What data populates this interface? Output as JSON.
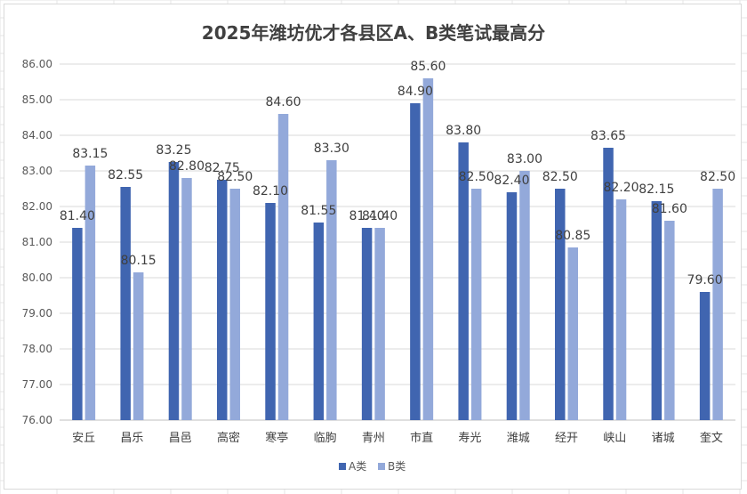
{
  "chart_data": {
    "type": "bar",
    "title": "2025年潍坊优才各县区A、B类笔试最高分",
    "categories": [
      "安丘",
      "昌乐",
      "昌邑",
      "高密",
      "寒亭",
      "临朐",
      "青州",
      "市直",
      "寿光",
      "潍城",
      "经开",
      "峡山",
      "诸城",
      "奎文"
    ],
    "series": [
      {
        "name": "A类",
        "color": "#4065b0",
        "values": [
          81.4,
          82.55,
          83.25,
          82.75,
          82.1,
          81.55,
          81.4,
          84.9,
          83.8,
          82.4,
          82.5,
          83.65,
          82.15,
          79.6
        ],
        "labels": [
          "81.40",
          "82.55",
          "83.25",
          "82.75",
          "82.10",
          "81.55",
          "81.40",
          "84.90",
          "83.80",
          "82.40",
          "82.50",
          "83.65",
          "82.15",
          "79.60"
        ]
      },
      {
        "name": "B类",
        "color": "#93a9da",
        "values": [
          83.15,
          80.15,
          82.8,
          82.5,
          84.6,
          83.3,
          81.4,
          85.6,
          82.5,
          83.0,
          80.85,
          82.2,
          81.6,
          82.5
        ],
        "labels": [
          "83.15",
          "80.15",
          "82.80",
          "82.50",
          "84.60",
          "83.30",
          "81.40",
          "85.60",
          "82.50",
          "83.00",
          "80.85",
          "82.20",
          "81.60",
          "82.50"
        ]
      }
    ],
    "ylim": [
      76,
      86
    ],
    "yticks": [
      "76.00",
      "77.00",
      "78.00",
      "79.00",
      "80.00",
      "81.00",
      "82.00",
      "83.00",
      "84.00",
      "85.00",
      "86.00"
    ],
    "grid": true,
    "legend": "bottom"
  }
}
